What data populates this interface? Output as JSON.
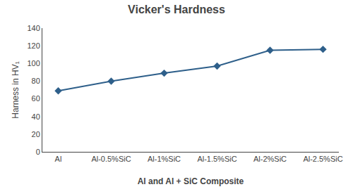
{
  "chart_data": {
    "type": "line",
    "title": "Vicker's Hardness",
    "xlabel": "Al and Al + SiC Composite",
    "ylabel": "Harness in HV₁",
    "categories": [
      "Al",
      "Al-0.5%SiC",
      "Al-1%SiC",
      "Al-1.5%SiC",
      "Al-2%SiC",
      "Al-2.5%SiC"
    ],
    "values": [
      69,
      80,
      89,
      97,
      115,
      116
    ],
    "color": "#2E5F8A",
    "marker": "diamond",
    "ylim": [
      0,
      140
    ],
    "yticks": [
      0,
      20,
      40,
      60,
      80,
      100,
      120,
      140
    ],
    "grid": false
  }
}
